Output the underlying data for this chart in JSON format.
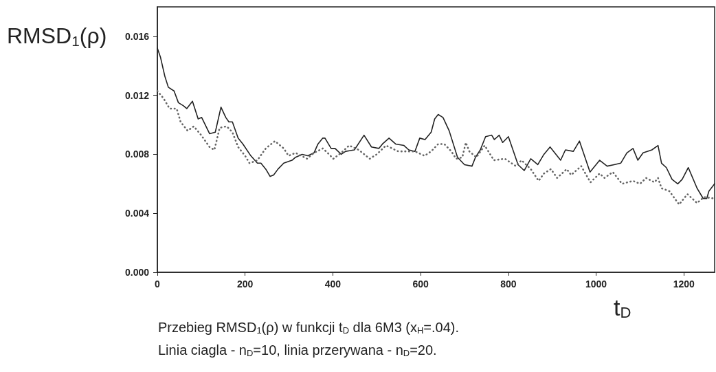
{
  "chart_data": {
    "type": "line",
    "xlabel": "t$_{D}$",
    "ylabel": "RMSD$_{1}$(ρ)",
    "annotations": [
      "Przebieg RMSD$_{1}$(ρ) w funkcji t$_{D}$ dla 6M3 (x$_{H}$=.04).",
      "Linia ciagla - n$_{D}$=10, linia przerywana - n$_{D}$=20."
    ],
    "xlim": [
      0,
      1270
    ],
    "xticks": [
      0,
      200,
      400,
      600,
      800,
      1000,
      1200
    ],
    "ylim": [
      0,
      0.018
    ],
    "yticks": [
      {
        "value": 0,
        "label": "0.000"
      },
      0.004,
      0.008,
      0.012,
      0.016
    ],
    "grid": false,
    "marker": "none",
    "series": [
      {
        "color": "#222222",
        "line_style": "solid",
        "x": [
          0,
          7,
          17,
          25,
          38,
          48,
          59,
          67,
          80,
          93,
          101,
          119,
          132,
          145,
          156,
          163,
          171,
          184,
          195,
          213,
          228,
          236,
          247,
          257,
          265,
          275,
          288,
          307,
          315,
          330,
          343,
          357,
          366,
          377,
          382,
          396,
          405,
          419,
          429,
          449,
          471,
          488,
          505,
          513,
          528,
          543,
          562,
          573,
          587,
          598,
          610,
          624,
          632,
          640,
          651,
          665,
          684,
          700,
          717,
          725,
          736,
          748,
          762,
          768,
          779,
          787,
          800,
          822,
          836,
          851,
          867,
          881,
          895,
          919,
          930,
          948,
          962,
          986,
          1008,
          1025,
          1041,
          1056,
          1070,
          1084,
          1095,
          1107,
          1127,
          1141,
          1149,
          1160,
          1173,
          1186,
          1196,
          1210,
          1230,
          1244,
          1252,
          1257,
          1270
        ],
        "values": [
          0.0152,
          0.0146,
          0.0133,
          0.01255,
          0.0123,
          0.0115,
          0.0113,
          0.0111,
          0.0116,
          0.0104,
          0.0105,
          0.0094,
          0.0095,
          0.0112,
          0.0105,
          0.0102,
          0.0102,
          0.0091,
          0.0087,
          0.0079,
          0.0074,
          0.0074,
          0.007,
          0.0065,
          0.0066,
          0.007,
          0.0074,
          0.0076,
          0.0078,
          0.008,
          0.0079,
          0.0081,
          0.0087,
          0.0091,
          0.0091,
          0.0084,
          0.0084,
          0.008,
          0.0082,
          0.0083,
          0.0093,
          0.0085,
          0.0084,
          0.0087,
          0.0091,
          0.0087,
          0.0086,
          0.0083,
          0.0082,
          0.0091,
          0.009,
          0.0095,
          0.0104,
          0.0107,
          0.0105,
          0.0096,
          0.0078,
          0.0073,
          0.0072,
          0.0078,
          0.0083,
          0.0092,
          0.0093,
          0.009,
          0.0093,
          0.0088,
          0.0092,
          0.0073,
          0.0069,
          0.0077,
          0.0073,
          0.008,
          0.0085,
          0.0076,
          0.0083,
          0.0082,
          0.0089,
          0.0068,
          0.0076,
          0.0072,
          0.0073,
          0.0074,
          0.0081,
          0.0084,
          0.0076,
          0.0081,
          0.0083,
          0.0086,
          0.0074,
          0.0071,
          0.0063,
          0.006,
          0.0063,
          0.0071,
          0.0057,
          0.005,
          0.005,
          0.0055,
          0.006
        ]
      },
      {
        "color": "#666666",
        "line_style": "dotted",
        "x": [
          0,
          14,
          28,
          44,
          53,
          69,
          83,
          100,
          119,
          130,
          142,
          158,
          171,
          184,
          200,
          210,
          228,
          247,
          268,
          288,
          299,
          315,
          341,
          357,
          377,
          388,
          401,
          419,
          437,
          459,
          484,
          500,
          521,
          549,
          570,
          587,
          609,
          624,
          640,
          654,
          670,
          681,
          695,
          703,
          711,
          727,
          746,
          767,
          792,
          817,
          830,
          851,
          869,
          881,
          897,
          911,
          933,
          943,
          966,
          987,
          1008,
          1019,
          1038,
          1059,
          1084,
          1100,
          1114,
          1133,
          1141,
          1149,
          1167,
          1189,
          1208,
          1230,
          1246,
          1270
        ],
        "values": [
          0.0123,
          0.0118,
          0.0111,
          0.0111,
          0.0102,
          0.0096,
          0.0099,
          0.0093,
          0.0085,
          0.0083,
          0.0098,
          0.0099,
          0.0095,
          0.0085,
          0.0079,
          0.0074,
          0.0076,
          0.0084,
          0.0089,
          0.0084,
          0.0079,
          0.0081,
          0.0077,
          0.0081,
          0.0084,
          0.0081,
          0.0077,
          0.0081,
          0.0086,
          0.0083,
          0.0077,
          0.008,
          0.0086,
          0.0082,
          0.0082,
          0.0082,
          0.0079,
          0.0082,
          0.0087,
          0.0087,
          0.0082,
          0.0077,
          0.0078,
          0.0088,
          0.0082,
          0.0078,
          0.0086,
          0.0076,
          0.0077,
          0.0072,
          0.0076,
          0.007,
          0.0062,
          0.0067,
          0.007,
          0.0064,
          0.007,
          0.0066,
          0.0072,
          0.0061,
          0.0067,
          0.0064,
          0.0068,
          0.006,
          0.0062,
          0.006,
          0.0064,
          0.0061,
          0.0064,
          0.0057,
          0.0055,
          0.0046,
          0.0053,
          0.0047,
          0.0051,
          0.005
        ]
      }
    ]
  }
}
